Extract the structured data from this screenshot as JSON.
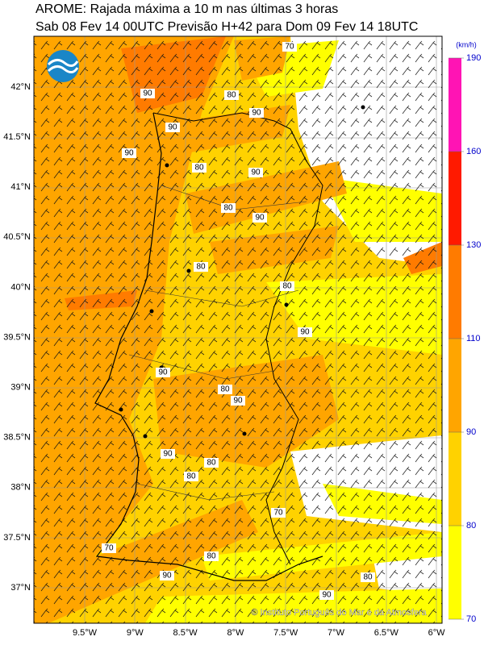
{
  "header": {
    "title": "AROME: Rajada máxima a 10 m nas últimas 3 horas",
    "subtitle": "Sab 08 Fev 14 00UTC Previsão H+42 para Dom 09 Fev 14 18UTC"
  },
  "map": {
    "lat_labels": [
      "42°N",
      "41.5°N",
      "41°N",
      "40.5°N",
      "40°N",
      "39.5°N",
      "39°N",
      "38.5°N",
      "38°N",
      "37.5°N",
      "37°N"
    ],
    "lon_labels": [
      "9.5°W",
      "9°W",
      "8.5°W",
      "8°W",
      "7.5°W",
      "7°W",
      "6.5°W",
      "6°W"
    ],
    "contour_labels": [
      90,
      90,
      80,
      90,
      80,
      90,
      90,
      80,
      70,
      80,
      80,
      90,
      90,
      90,
      80,
      90,
      80,
      80,
      70,
      90,
      80,
      90,
      90,
      80,
      70
    ]
  },
  "legend": {
    "unit": "(km/h)",
    "levels": [
      70,
      80,
      90,
      110,
      130,
      160,
      190
    ],
    "colors": [
      "#ffff00",
      "#ffd200",
      "#ffa500",
      "#ff7b00",
      "#ff1a00",
      "#ff14b4"
    ]
  },
  "footer": {
    "credit": "© Instituto Português do Mar e da Atmosfera"
  }
}
